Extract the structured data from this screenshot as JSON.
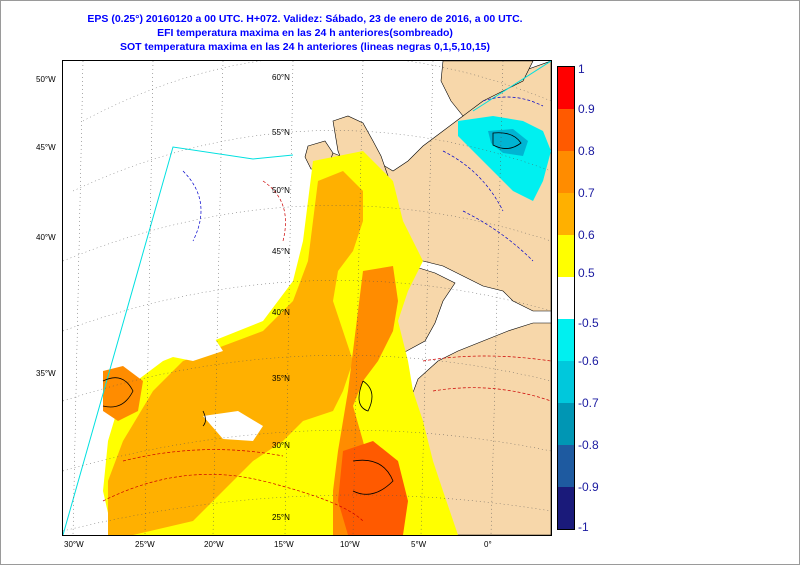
{
  "titles": {
    "line1": "EPS (0.25°) 20160120 a 00 UTC.  H+072. Validez: Sábado, 23 de enero de 2016,  a  00 UTC.",
    "line2": "EFI temperatura maxima en las 24 h anteriores(sombreado)",
    "line3": "SOT temperatura maxima en las 24 h anteriores (lineas negras 0,1,5,10,15)"
  },
  "colorbar": {
    "segments": [
      {
        "color": "#ff0000"
      },
      {
        "color": "#ff5a00"
      },
      {
        "color": "#ff8c00"
      },
      {
        "color": "#ffb000"
      },
      {
        "color": "#ffff00"
      },
      {
        "color": "#ffffff"
      },
      {
        "color": "#00f0f0"
      },
      {
        "color": "#00c8dc"
      },
      {
        "color": "#0096b4"
      },
      {
        "color": "#1e5aa0"
      },
      {
        "color": "#1a1a7a"
      }
    ],
    "labels": [
      "1",
      "0.9",
      "0.8",
      "0.7",
      "0.6",
      "0.5",
      "-0.5",
      "-0.6",
      "-0.7",
      "-0.8",
      "-0.9",
      "-1"
    ]
  },
  "lon_labels": [
    "30°W",
    "25°W",
    "20°W",
    "15°W",
    "10°W",
    "5°W",
    "0°"
  ],
  "lat_labels_left": [
    "50°W",
    "45°W",
    "40°W",
    "35°W"
  ],
  "lat_labels_inner": [
    "60°N",
    "55°N",
    "50°N",
    "45°N",
    "40°N",
    "35°N",
    "30°N",
    "25°N"
  ],
  "colors": {
    "title": "#0000ff",
    "land": "#f7d7aa",
    "sea": "#ffffff",
    "efi_yellow": "#ffff00",
    "efi_orange_light": "#ffb000",
    "efi_orange": "#ff8c00",
    "efi_red_orange": "#ff5a00",
    "efi_cyan": "#00f0f0",
    "domain_border": "#00e0e0",
    "dashed_warm": "#cc0000",
    "dashed_cold": "#0000cc"
  }
}
